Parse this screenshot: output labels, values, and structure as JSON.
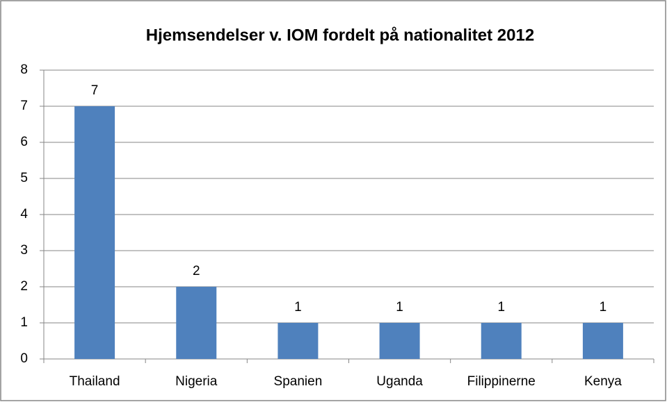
{
  "chart_data": {
    "type": "bar",
    "title": "Hjemsendelser v. IOM fordelt på nationalitet 2012",
    "categories": [
      "Thailand",
      "Nigeria",
      "Spanien",
      "Uganda",
      "Filippinerne",
      "Kenya"
    ],
    "values": [
      7,
      2,
      1,
      1,
      1,
      1
    ],
    "color": "#4f81bd",
    "ylim": [
      0,
      8
    ],
    "yticks": [
      0,
      1,
      2,
      3,
      4,
      5,
      6,
      7,
      8
    ],
    "grid": true,
    "data_labels": true
  }
}
